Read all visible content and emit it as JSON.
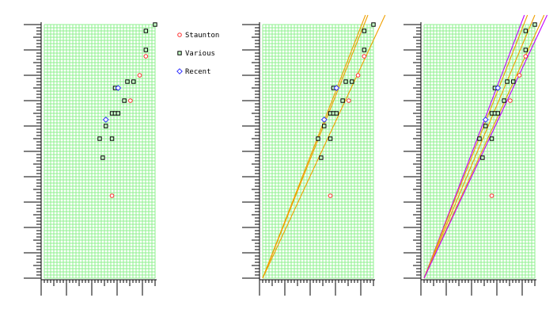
{
  "colors": {
    "grid": "#8ff08f",
    "axis": "#000000",
    "staunton": "#ff3030",
    "various": "#000000",
    "various_fill": "#c8ffc8",
    "recent": "#3030ff",
    "band_orange": "#f0a000",
    "band_magenta": "#c000ff"
  },
  "legend": {
    "position": "right of first panel",
    "items": [
      {
        "name": "Staunton",
        "marker": "circle",
        "color": "#ff3030"
      },
      {
        "name": "Various",
        "marker": "square",
        "color": "#000000"
      },
      {
        "name": "Recent",
        "marker": "diamond",
        "color": "#3030ff"
      }
    ]
  },
  "chart_data": [
    {
      "type": "scatter",
      "title": "",
      "xlabel": "",
      "ylabel": "",
      "grid": true,
      "xlim": [
        0,
        18
      ],
      "ylim": [
        0,
        40
      ],
      "series": [
        {
          "name": "Staunton",
          "marker": "circle",
          "points": [
            [
              11,
              13
            ],
            [
              14,
              28
            ],
            [
              15.5,
              32
            ],
            [
              16.5,
              35
            ]
          ]
        },
        {
          "name": "Various",
          "marker": "square",
          "points": [
            [
              9.5,
              19
            ],
            [
              9,
              22
            ],
            [
              10,
              24
            ],
            [
              11,
              22
            ],
            [
              11,
              26
            ],
            [
              11.5,
              26
            ],
            [
              12,
              26
            ],
            [
              13,
              28
            ],
            [
              11.5,
              30
            ],
            [
              13.5,
              31
            ],
            [
              14.5,
              31
            ],
            [
              16.5,
              36
            ],
            [
              16.5,
              39
            ],
            [
              18,
              40
            ]
          ]
        },
        {
          "name": "Recent",
          "marker": "diamond",
          "points": [
            [
              10,
              25
            ],
            [
              12,
              30
            ]
          ]
        }
      ],
      "lines": []
    },
    {
      "type": "scatter",
      "title": "",
      "xlabel": "",
      "ylabel": "",
      "grid": true,
      "xlim": [
        0,
        18
      ],
      "ylim": [
        0,
        40
      ],
      "series": [
        {
          "name": "Staunton",
          "marker": "circle",
          "points": [
            [
              11,
              13
            ],
            [
              14,
              28
            ],
            [
              15.5,
              32
            ],
            [
              16.5,
              35
            ]
          ]
        },
        {
          "name": "Various",
          "marker": "square",
          "points": [
            [
              9.5,
              19
            ],
            [
              9,
              22
            ],
            [
              10,
              24
            ],
            [
              11,
              22
            ],
            [
              11,
              26
            ],
            [
              11.5,
              26
            ],
            [
              12,
              26
            ],
            [
              13,
              28
            ],
            [
              11.5,
              30
            ],
            [
              13.5,
              31
            ],
            [
              14.5,
              31
            ],
            [
              16.5,
              36
            ],
            [
              16.5,
              39
            ],
            [
              18,
              40
            ]
          ]
        },
        {
          "name": "Recent",
          "marker": "diamond",
          "points": [
            [
              10,
              25
            ],
            [
              12,
              30
            ]
          ]
        }
      ],
      "lines": [
        {
          "color": "#f0a000",
          "from": [
            0,
            0
          ],
          "to": [
            16.7,
            41.5
          ]
        },
        {
          "color": "#f0a000",
          "from": [
            0,
            0
          ],
          "to": [
            17.1,
            41.5
          ]
        },
        {
          "color": "#f0a000",
          "from": [
            0,
            0
          ],
          "to": [
            19.9,
            41.5
          ]
        }
      ]
    },
    {
      "type": "scatter",
      "title": "",
      "xlabel": "",
      "ylabel": "",
      "grid": true,
      "xlim": [
        0,
        18
      ],
      "ylim": [
        0,
        40
      ],
      "series": [
        {
          "name": "Staunton",
          "marker": "circle",
          "points": [
            [
              11,
              13
            ],
            [
              14,
              28
            ],
            [
              15.5,
              32
            ],
            [
              16.5,
              35
            ]
          ]
        },
        {
          "name": "Various",
          "marker": "square",
          "points": [
            [
              9.5,
              19
            ],
            [
              9,
              22
            ],
            [
              10,
              24
            ],
            [
              11,
              22
            ],
            [
              11,
              26
            ],
            [
              11.5,
              26
            ],
            [
              12,
              26
            ],
            [
              13,
              28
            ],
            [
              11.5,
              30
            ],
            [
              13.5,
              31
            ],
            [
              14.5,
              31
            ],
            [
              16.5,
              36
            ],
            [
              16.5,
              39
            ],
            [
              18,
              40
            ]
          ]
        },
        {
          "name": "Recent",
          "marker": "diamond",
          "points": [
            [
              10,
              25
            ],
            [
              12,
              30
            ]
          ]
        }
      ],
      "lines": [
        {
          "color": "#c000ff",
          "from": [
            0,
            0
          ],
          "to": [
            16.3,
            41.5
          ]
        },
        {
          "color": "#f0a000",
          "from": [
            0,
            0
          ],
          "to": [
            16.8,
            41.5
          ]
        },
        {
          "color": "#f0a000",
          "from": [
            0,
            0
          ],
          "to": [
            18.0,
            41.5
          ]
        },
        {
          "color": "#f0a000",
          "from": [
            0,
            0
          ],
          "to": [
            19.5,
            41.5
          ]
        },
        {
          "color": "#c000ff",
          "from": [
            0,
            0
          ],
          "to": [
            20.0,
            41.5
          ]
        }
      ]
    }
  ]
}
